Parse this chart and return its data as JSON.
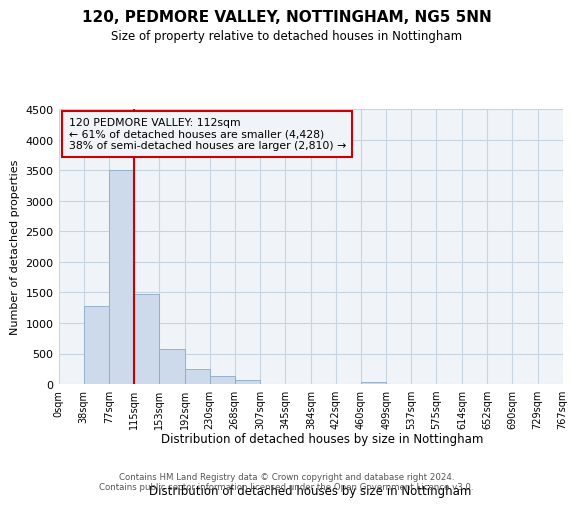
{
  "title": "120, PEDMORE VALLEY, NOTTINGHAM, NG5 5NN",
  "subtitle": "Size of property relative to detached houses in Nottingham",
  "xlabel": "Distribution of detached houses by size in Nottingham",
  "ylabel": "Number of detached properties",
  "bin_edges": [
    0,
    38,
    77,
    115,
    153,
    192,
    230,
    268,
    307,
    345,
    384,
    422,
    460,
    499,
    537,
    575,
    614,
    652,
    690,
    729,
    767
  ],
  "bar_heights": [
    0,
    1270,
    3500,
    1480,
    570,
    240,
    130,
    70,
    0,
    0,
    0,
    0,
    30,
    0,
    0,
    0,
    0,
    0,
    0,
    0
  ],
  "bar_color": "#ccdaeb",
  "bar_edge_color": "#8aaac8",
  "grid_color": "#c8d4e0",
  "property_size_bin": 115,
  "vline_color": "#cc0000",
  "annotation_title": "120 PEDMORE VALLEY: 112sqm",
  "annotation_line1": "← 61% of detached houses are smaller (4,428)",
  "annotation_line2": "38% of semi-detached houses are larger (2,810) →",
  "annotation_box_edge": "#cc0000",
  "ylim": [
    0,
    4500
  ],
  "yticks": [
    0,
    500,
    1000,
    1500,
    2000,
    2500,
    3000,
    3500,
    4000,
    4500
  ],
  "tick_labels": [
    "0sqm",
    "38sqm",
    "77sqm",
    "115sqm",
    "153sqm",
    "192sqm",
    "230sqm",
    "268sqm",
    "307sqm",
    "345sqm",
    "384sqm",
    "422sqm",
    "460sqm",
    "499sqm",
    "537sqm",
    "575sqm",
    "614sqm",
    "652sqm",
    "690sqm",
    "729sqm",
    "767sqm"
  ],
  "footer_line1": "Contains HM Land Registry data © Crown copyright and database right 2024.",
  "footer_line2": "Contains public sector information licensed under the Open Government Licence v3.0.",
  "background_color": "#ffffff",
  "plot_bg_color": "#f0f4f8"
}
